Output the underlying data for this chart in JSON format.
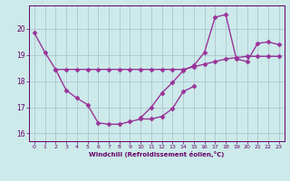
{
  "background_color": "#cceaea",
  "grid_color": "#aabbcc",
  "line_color": "#993399",
  "marker": "D",
  "marker_size": 2.5,
  "line_width": 1.0,
  "xlabel": "Windchill (Refroidissement éolien,°C)",
  "xlim": [
    -0.5,
    23.5
  ],
  "ylim": [
    15.7,
    20.9
  ],
  "yticks": [
    16,
    17,
    18,
    19,
    20
  ],
  "xticks": [
    0,
    1,
    2,
    3,
    4,
    5,
    6,
    7,
    8,
    9,
    10,
    11,
    12,
    13,
    14,
    15,
    16,
    17,
    18,
    19,
    20,
    21,
    22,
    23
  ],
  "series": [
    {
      "x": [
        0,
        1,
        2,
        3,
        4,
        5,
        6,
        7,
        8,
        9,
        10,
        11,
        12,
        13,
        14,
        15,
        16,
        17,
        18,
        19,
        20,
        21,
        22,
        23
      ],
      "y": [
        19.85,
        19.1,
        18.45,
        18.45,
        18.45,
        18.45,
        18.45,
        18.45,
        18.45,
        18.45,
        18.45,
        18.45,
        18.45,
        18.45,
        18.45,
        18.55,
        18.65,
        18.75,
        18.85,
        18.9,
        18.95,
        18.95,
        18.95,
        18.95
      ]
    },
    {
      "x": [
        2,
        3,
        4,
        5,
        6,
        7,
        8,
        9,
        10,
        11,
        12,
        13,
        14,
        15
      ],
      "y": [
        18.45,
        17.65,
        17.35,
        17.1,
        16.4,
        16.35,
        16.35,
        16.45,
        16.55,
        16.55,
        16.65,
        16.95,
        17.6,
        17.8
      ]
    },
    {
      "x": [
        10,
        11,
        12,
        13,
        14,
        15,
        16,
        17,
        18,
        19,
        20,
        21,
        22,
        23
      ],
      "y": [
        16.6,
        17.0,
        17.55,
        17.95,
        18.4,
        18.6,
        19.1,
        20.45,
        20.55,
        18.85,
        18.75,
        19.45,
        19.5,
        19.4
      ]
    }
  ]
}
